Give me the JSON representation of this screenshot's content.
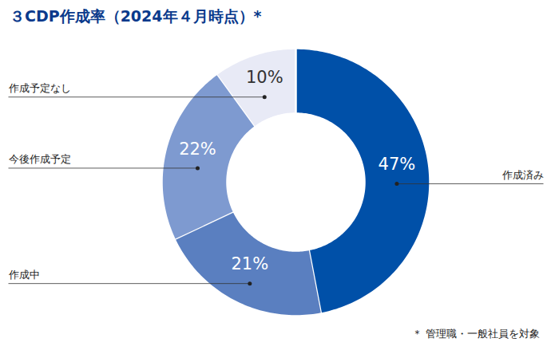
{
  "chart_data": {
    "type": "pie",
    "title": "３CDP作成率（2024年４月時点）*",
    "categories": [
      "作成済み",
      "作成中",
      "今後作成予定",
      "作成予定なし"
    ],
    "values": [
      47,
      21,
      22,
      10
    ],
    "value_labels": [
      "47%",
      "21%",
      "22%",
      "10%"
    ],
    "colors": [
      "#0050a8",
      "#5a7fc0",
      "#7e9ad0",
      "#e8eaf6"
    ],
    "data_labels": true,
    "annotations": [
      "＊ 管理職・一般社員を対象"
    ]
  }
}
